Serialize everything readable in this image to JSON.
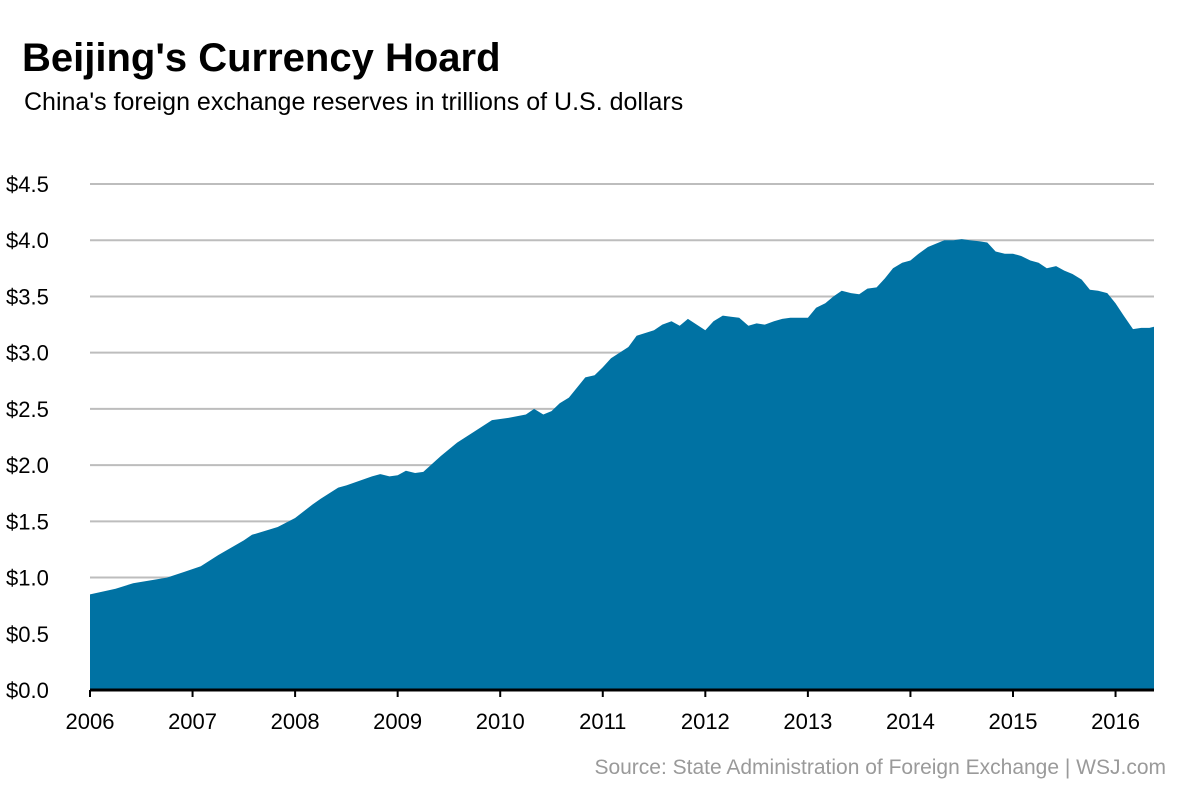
{
  "title": "Beijing's Currency Hoard",
  "subtitle": "China's foreign exchange reserves in trillions of U.S. dollars",
  "source": "Source: State Administration of Foreign Exchange  |  WSJ.com",
  "colors": {
    "area": "#0072a3",
    "grid": "#bdbdbd",
    "axis": "#000000",
    "source_text": "#9a9a9a"
  },
  "chart_data": {
    "type": "area",
    "title": "Beijing's Currency Hoard",
    "subtitle": "China's foreign exchange reserves in trillions of U.S. dollars",
    "xlabel": "",
    "ylabel": "",
    "xlim": [
      2006.0,
      2016.375
    ],
    "ylim": [
      0,
      4.5
    ],
    "grid": true,
    "y_ticks": [
      0,
      0.5,
      1.0,
      1.5,
      2.0,
      2.5,
      3.0,
      3.5,
      4.0,
      4.5
    ],
    "y_tick_labels": [
      "$0.0",
      "$0.5",
      "$1.0",
      "$1.5",
      "$2.0",
      "$2.5",
      "$3.0",
      "$3.5",
      "$4.0",
      "$4.5"
    ],
    "x_ticks": [
      2006,
      2007,
      2008,
      2009,
      2010,
      2011,
      2012,
      2013,
      2014,
      2015,
      2016
    ],
    "x_tick_labels": [
      "2006",
      "2007",
      "2008",
      "2009",
      "2010",
      "2011",
      "2012",
      "2013",
      "2014",
      "2015",
      "2016"
    ],
    "series": [
      {
        "x": [
          2006.0,
          2006.25,
          2006.42,
          2006.75,
          2006.92,
          2007.08,
          2007.25,
          2007.5,
          2007.58,
          2007.83,
          2008.0,
          2008.17,
          2008.25,
          2008.42,
          2008.5,
          2008.75,
          2008.83,
          2008.92,
          2009.0,
          2009.08,
          2009.17,
          2009.25,
          2009.42,
          2009.58,
          2009.75,
          2009.92,
          2010.08,
          2010.25,
          2010.33,
          2010.42,
          2010.5,
          2010.58,
          2010.67,
          2010.83,
          2010.92,
          2011.0,
          2011.08,
          2011.25,
          2011.33,
          2011.5,
          2011.58,
          2011.67,
          2011.75,
          2011.83,
          2012.0,
          2012.08,
          2012.17,
          2012.25,
          2012.33,
          2012.42,
          2012.5,
          2012.58,
          2012.67,
          2012.75,
          2012.83,
          2013.0,
          2013.08,
          2013.17,
          2013.25,
          2013.33,
          2013.42,
          2013.5,
          2013.58,
          2013.67,
          2013.75,
          2013.83,
          2013.92,
          2014.0,
          2014.08,
          2014.17,
          2014.25,
          2014.33,
          2014.42,
          2014.5,
          2014.58,
          2014.67,
          2014.75,
          2014.83,
          2014.92,
          2015.0,
          2015.08,
          2015.17,
          2015.25,
          2015.33,
          2015.42,
          2015.5,
          2015.58,
          2015.67,
          2015.75,
          2015.83,
          2015.92,
          2016.0,
          2016.08,
          2016.17,
          2016.25,
          2016.33,
          2016.375
        ],
        "values": [
          0.85,
          0.9,
          0.95,
          1.0,
          1.05,
          1.1,
          1.2,
          1.33,
          1.38,
          1.45,
          1.53,
          1.65,
          1.7,
          1.8,
          1.82,
          1.9,
          1.92,
          1.9,
          1.91,
          1.95,
          1.93,
          1.94,
          2.08,
          2.2,
          2.3,
          2.4,
          2.42,
          2.45,
          2.5,
          2.45,
          2.48,
          2.55,
          2.6,
          2.78,
          2.8,
          2.87,
          2.95,
          3.05,
          3.15,
          3.2,
          3.25,
          3.28,
          3.24,
          3.3,
          3.2,
          3.28,
          3.33,
          3.32,
          3.31,
          3.24,
          3.26,
          3.25,
          3.28,
          3.3,
          3.31,
          3.31,
          3.4,
          3.44,
          3.5,
          3.55,
          3.53,
          3.52,
          3.57,
          3.58,
          3.66,
          3.75,
          3.8,
          3.82,
          3.88,
          3.94,
          3.97,
          4.0,
          4.0,
          4.01,
          4.0,
          3.99,
          3.98,
          3.9,
          3.88,
          3.88,
          3.86,
          3.82,
          3.8,
          3.75,
          3.77,
          3.73,
          3.7,
          3.65,
          3.56,
          3.55,
          3.53,
          3.44,
          3.33,
          3.21,
          3.22,
          3.22,
          3.23
        ]
      }
    ]
  }
}
